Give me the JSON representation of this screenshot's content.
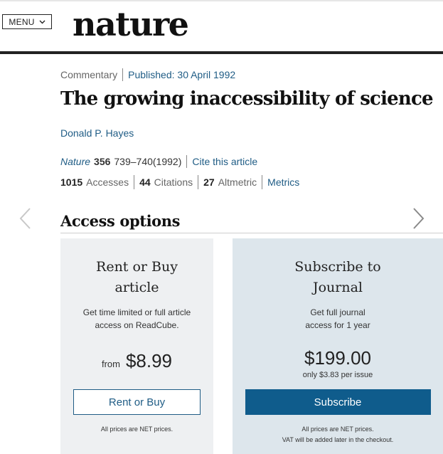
{
  "header": {
    "menu_label": "MENU",
    "logo_text": "nature"
  },
  "article": {
    "type": "Commentary",
    "published": "Published: 30 April 1992",
    "title": "The growing inaccessibility of science",
    "author": "Donald P. Hayes",
    "citation": {
      "journal": "Nature",
      "volume": "356",
      "pages": "739–740(1992)",
      "cite_link": "Cite this article"
    },
    "metrics": {
      "accesses_count": "1015",
      "accesses_label": "Accesses",
      "citations_count": "44",
      "citations_label": "Citations",
      "altmetric_count": "27",
      "altmetric_label": "Altmetric",
      "metrics_link": "Metrics"
    }
  },
  "access_options": {
    "heading": "Access options",
    "rent": {
      "title": "Rent or Buy article",
      "description": "Get time limited or full article access on ReadCube.",
      "price_prefix": "from",
      "price": "$8.99",
      "button_label": "Rent or Buy",
      "note": "All prices are NET prices."
    },
    "subscribe": {
      "title": "Subscribe to Journal",
      "description": "Get full journal access for 1 year",
      "price": "$199.00",
      "per_issue": "only $3.83 per issue",
      "button_label": "Subscribe",
      "note_line1": "All prices are NET prices.",
      "note_line2": "VAT will be added later in the checkout."
    }
  },
  "colors": {
    "link": "#1f5c85",
    "subscribe_button": "#0f5c8c",
    "rent_card_bg": "#eef0f2",
    "subscribe_card_bg": "#dde6ec"
  }
}
